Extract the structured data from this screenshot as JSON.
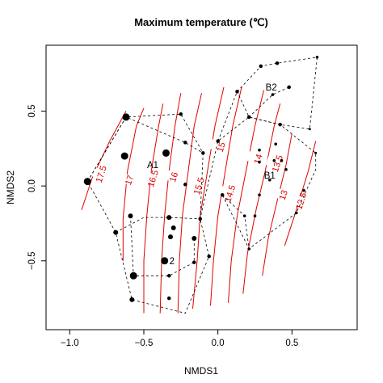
{
  "chart_data": {
    "type": "scatter",
    "title": "Maximum temperature (℃)",
    "xlabel": "NMDS1",
    "ylabel": "NMDS2",
    "xlim": [
      -1.16,
      0.94
    ],
    "ylim": [
      -0.96,
      0.94
    ],
    "x_ticks": [
      -1.0,
      -0.5,
      0.0,
      0.5
    ],
    "x_tick_labels": [
      "−1.0",
      "−0.5",
      "0.0",
      "0.5"
    ],
    "y_ticks": [
      -0.5,
      0.0,
      0.5
    ],
    "y_tick_labels": [
      "−0.5",
      "0.0",
      "0.5"
    ],
    "grid": false,
    "point_color": "#000000",
    "hull_color": "#000000",
    "contour_color": "#e00000",
    "points": [
      {
        "x": -0.88,
        "y": 0.03,
        "size": 3
      },
      {
        "x": -0.62,
        "y": 0.46,
        "size": 3
      },
      {
        "x": -0.63,
        "y": 0.2,
        "size": 3
      },
      {
        "x": -0.35,
        "y": 0.22,
        "size": 3
      },
      {
        "x": -0.36,
        "y": -0.5,
        "size": 3
      },
      {
        "x": -0.57,
        "y": -0.6,
        "size": 3
      },
      {
        "x": -0.58,
        "y": -0.76,
        "size": 2
      },
      {
        "x": -0.32,
        "y": -0.34,
        "size": 2
      },
      {
        "x": -0.3,
        "y": -0.28,
        "size": 2
      },
      {
        "x": -0.59,
        "y": -0.2,
        "size": 2
      },
      {
        "x": -0.69,
        "y": -0.31,
        "size": 2
      },
      {
        "x": -0.33,
        "y": -0.21,
        "size": 2
      },
      {
        "x": -0.16,
        "y": -0.35,
        "size": 2
      },
      {
        "x": -0.25,
        "y": 0.48,
        "size": 1.5
      },
      {
        "x": -0.22,
        "y": 0.29,
        "size": 1.5
      },
      {
        "x": -0.1,
        "y": 0.22,
        "size": 1.5
      },
      {
        "x": -0.22,
        "y": 0.01,
        "size": 1.5
      },
      {
        "x": -0.16,
        "y": -0.51,
        "size": 1.5
      },
      {
        "x": -0.33,
        "y": -0.6,
        "size": 1.5
      },
      {
        "x": -0.33,
        "y": -0.75,
        "size": 1.5
      },
      {
        "x": -0.12,
        "y": -0.22,
        "size": 1.5
      },
      {
        "x": -0.06,
        "y": -0.47,
        "size": 1.5
      },
      {
        "x": 0.13,
        "y": 0.63,
        "size": 1.5
      },
      {
        "x": 0.21,
        "y": 0.46,
        "size": 1.5
      },
      {
        "x": 0.29,
        "y": 0.8,
        "size": 1.5
      },
      {
        "x": 0.4,
        "y": 0.82,
        "size": 1.5
      },
      {
        "x": 0.48,
        "y": 0.66,
        "size": 1.5
      },
      {
        "x": 0.37,
        "y": 0.61,
        "size": 1.2
      },
      {
        "x": 0.67,
        "y": 0.86,
        "size": 1.2
      },
      {
        "x": 0.42,
        "y": 0.41,
        "size": 1.5
      },
      {
        "x": 0.0,
        "y": 0.3,
        "size": 1.5
      },
      {
        "x": 0.03,
        "y": -0.06,
        "size": 1.5
      },
      {
        "x": 0.18,
        "y": -0.2,
        "size": 1.2
      },
      {
        "x": 0.28,
        "y": 0.24,
        "size": 1.2
      },
      {
        "x": 0.28,
        "y": 0.16,
        "size": 1.2
      },
      {
        "x": 0.38,
        "y": 0.17,
        "size": 1.2
      },
      {
        "x": 0.43,
        "y": 0.17,
        "size": 1.2
      },
      {
        "x": 0.39,
        "y": 0.28,
        "size": 1.2
      },
      {
        "x": 0.35,
        "y": 0.04,
        "size": 1.2
      },
      {
        "x": 0.46,
        "y": 0.11,
        "size": 1.2
      },
      {
        "x": 0.28,
        "y": -0.06,
        "size": 1.2
      },
      {
        "x": 0.21,
        "y": -0.42,
        "size": 1.2
      },
      {
        "x": 0.25,
        "y": -0.2,
        "size": 1.2
      },
      {
        "x": 0.58,
        "y": -0.03,
        "size": 1.2
      },
      {
        "x": 0.53,
        "y": -0.18,
        "size": 1.2
      },
      {
        "x": 0.62,
        "y": 0.38,
        "size": 1.0
      },
      {
        "x": 0.66,
        "y": 0.22,
        "size": 1.0
      }
    ],
    "hulls": [
      [
        [
          -0.88,
          0.03
        ],
        [
          -0.62,
          0.46
        ],
        [
          -0.25,
          0.48
        ],
        [
          -0.1,
          0.22
        ],
        [
          -0.12,
          -0.22
        ],
        [
          -0.06,
          -0.47
        ],
        [
          -0.22,
          -0.85
        ],
        [
          -0.58,
          -0.76
        ],
        [
          -0.69,
          -0.31
        ],
        [
          -0.88,
          0.03
        ]
      ],
      [
        [
          -0.69,
          -0.31
        ],
        [
          -0.5,
          -0.21
        ],
        [
          -0.33,
          -0.21
        ],
        [
          -0.12,
          -0.22
        ],
        [
          0.0,
          0.3
        ],
        [
          0.21,
          0.46
        ],
        [
          0.42,
          0.41
        ],
        [
          0.66,
          0.22
        ],
        [
          0.66,
          0.11
        ],
        [
          0.53,
          -0.18
        ],
        [
          0.21,
          -0.42
        ],
        [
          0.03,
          -0.06
        ]
      ],
      [
        [
          0.13,
          0.63
        ],
        [
          0.29,
          0.8
        ],
        [
          0.4,
          0.82
        ],
        [
          0.67,
          0.86
        ],
        [
          0.62,
          0.38
        ],
        [
          0.42,
          0.41
        ],
        [
          0.21,
          0.46
        ],
        [
          0.13,
          0.63
        ]
      ],
      [
        [
          -0.88,
          0.03
        ],
        [
          -0.62,
          0.46
        ],
        [
          -0.22,
          0.29
        ],
        [
          -0.1,
          0.22
        ]
      ],
      [
        [
          -0.59,
          -0.2
        ],
        [
          -0.57,
          -0.6
        ],
        [
          -0.33,
          -0.6
        ],
        [
          -0.16,
          -0.51
        ],
        [
          -0.16,
          -0.35
        ]
      ],
      [
        [
          0.0,
          0.3
        ],
        [
          0.13,
          0.63
        ]
      ],
      [
        [
          0.03,
          -0.06
        ],
        [
          0.18,
          -0.2
        ],
        [
          0.21,
          -0.42
        ]
      ],
      [
        [
          0.48,
          0.66
        ],
        [
          0.37,
          0.61
        ],
        [
          0.21,
          0.46
        ]
      ]
    ],
    "contours": [
      {
        "label": "17.5",
        "label_x": -0.79,
        "label_y": 0.08,
        "pts": [
          [
            -0.92,
            -0.16
          ],
          [
            -0.85,
            0.05
          ],
          [
            -0.73,
            0.3
          ],
          [
            -0.62,
            0.5
          ]
        ]
      },
      {
        "label": "17",
        "label_x": -0.6,
        "label_y": 0.04,
        "pts": [
          [
            -0.64,
            -0.5
          ],
          [
            -0.64,
            -0.22
          ],
          [
            -0.61,
            0.1
          ],
          [
            -0.55,
            0.4
          ],
          [
            -0.5,
            0.52
          ]
        ]
      },
      {
        "label": "16.5",
        "label_x": -0.44,
        "label_y": 0.05,
        "pts": [
          [
            -0.5,
            -0.85
          ],
          [
            -0.5,
            -0.5
          ],
          [
            -0.48,
            -0.2
          ],
          [
            -0.45,
            0.1
          ],
          [
            -0.4,
            0.4
          ],
          [
            -0.37,
            0.55
          ]
        ]
      },
      {
        "label": "16",
        "label_x": -0.3,
        "label_y": 0.06,
        "pts": [
          [
            -0.39,
            -0.85
          ],
          [
            -0.38,
            -0.5
          ],
          [
            -0.36,
            -0.2
          ],
          [
            -0.33,
            0.1
          ],
          [
            -0.29,
            0.4
          ],
          [
            -0.25,
            0.62
          ]
        ]
      },
      {
        "label": "15.5",
        "label_x": -0.13,
        "label_y": 0.0,
        "pts": [
          [
            -0.27,
            -0.85
          ],
          [
            -0.26,
            -0.5
          ],
          [
            -0.24,
            -0.2
          ],
          [
            -0.2,
            0.1
          ],
          [
            -0.16,
            0.4
          ],
          [
            -0.11,
            0.62
          ]
        ]
      },
      {
        "label": "15",
        "label_x": 0.02,
        "label_y": 0.26,
        "pts": [
          [
            -0.17,
            -0.82
          ],
          [
            -0.14,
            -0.5
          ],
          [
            -0.12,
            -0.2
          ],
          [
            -0.07,
            0.1
          ],
          [
            -0.02,
            0.4
          ],
          [
            0.04,
            0.66
          ]
        ]
      },
      {
        "label": "14.5",
        "label_x": 0.08,
        "label_y": -0.05,
        "pts": [
          [
            -0.05,
            -0.8
          ],
          [
            -0.03,
            -0.5
          ],
          [
            0.0,
            -0.2
          ],
          [
            0.05,
            0.1
          ],
          [
            0.1,
            0.4
          ],
          [
            0.16,
            0.66
          ]
        ]
      },
      {
        "label": "14",
        "label_x": 0.27,
        "label_y": 0.18,
        "pts": [
          [
            0.07,
            -0.78
          ],
          [
            0.09,
            -0.5
          ],
          [
            0.13,
            -0.2
          ],
          [
            0.19,
            0.1
          ],
          [
            0.25,
            0.4
          ],
          [
            0.31,
            0.64
          ]
        ]
      },
      {
        "label": "13.5",
        "label_x": 0.4,
        "label_y": 0.15,
        "pts": [
          [
            0.17,
            -0.72
          ],
          [
            0.2,
            -0.45
          ],
          [
            0.26,
            -0.15
          ],
          [
            0.32,
            0.1
          ],
          [
            0.38,
            0.4
          ],
          [
            0.42,
            0.55
          ]
        ]
      },
      {
        "label": "13",
        "label_x": 0.44,
        "label_y": -0.06,
        "pts": [
          [
            0.3,
            -0.6
          ],
          [
            0.34,
            -0.35
          ],
          [
            0.4,
            -0.1
          ],
          [
            0.46,
            0.14
          ],
          [
            0.5,
            0.35
          ]
        ]
      },
      {
        "label": "12.5",
        "label_x": 0.56,
        "label_y": -0.1,
        "pts": [
          [
            0.45,
            -0.4
          ],
          [
            0.53,
            -0.16
          ],
          [
            0.61,
            0.1
          ],
          [
            0.66,
            0.3
          ]
        ]
      }
    ],
    "group_labels": [
      {
        "text": "A1",
        "x": -0.44,
        "y": 0.14
      },
      {
        "text": "B2",
        "x": 0.36,
        "y": 0.66
      },
      {
        "text": "B1",
        "x": 0.35,
        "y": 0.07
      },
      {
        "text": "2",
        "x": -0.31,
        "y": -0.5
      }
    ]
  }
}
